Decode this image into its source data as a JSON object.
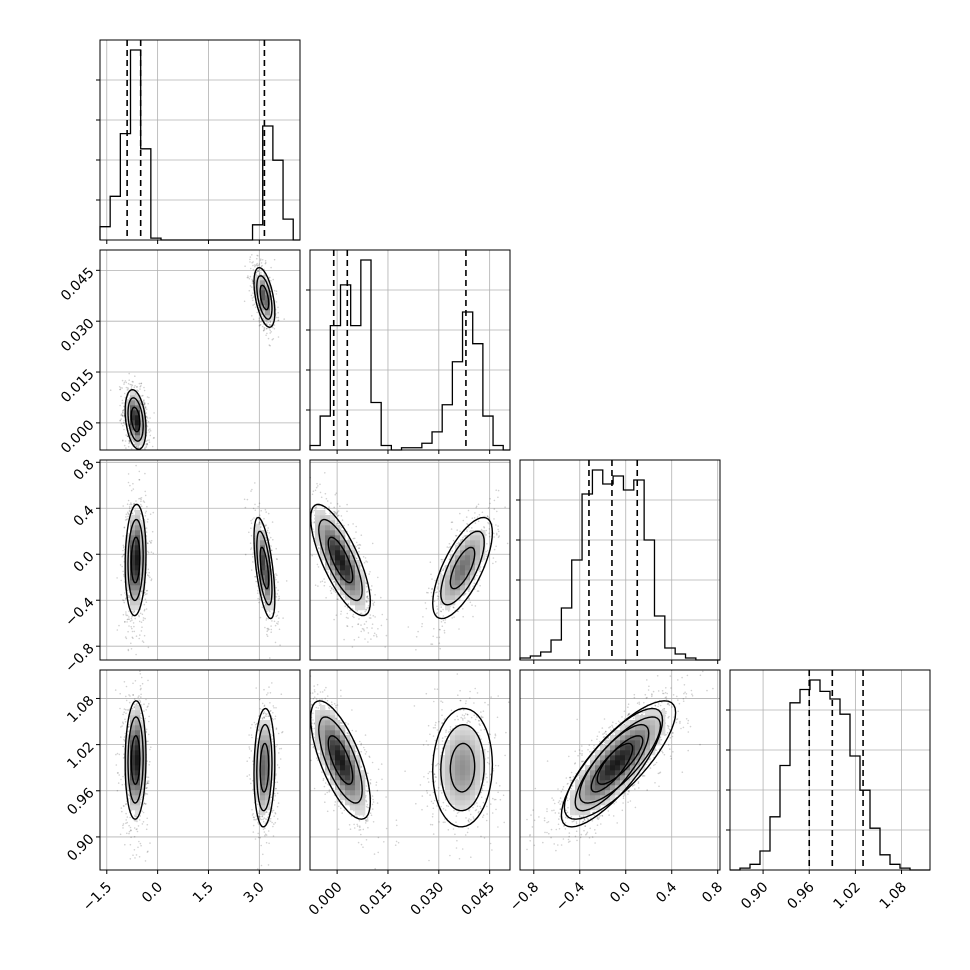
{
  "chart_data": {
    "type": "corner",
    "grid": true,
    "colors": {
      "line": "#000000",
      "grid": "#b0b0b0",
      "points": "#000000",
      "fill_dark": "#1a1a1a"
    },
    "parameters": [
      {
        "id": "p0",
        "range": [
          -1.7,
          4.2
        ],
        "ticks": [
          -1.5,
          0.0,
          1.5,
          3.0
        ],
        "tick_labels": [
          "−1.5",
          "0.0",
          "1.5",
          "3.0"
        ],
        "quantiles": [
          -0.9,
          -0.5,
          3.15
        ],
        "histogram": {
          "bin_edges": [
            -1.7,
            -1.4,
            -1.1,
            -0.8,
            -0.5,
            -0.2,
            0.1,
            0.4,
            0.7,
            1.0,
            1.3,
            1.6,
            1.9,
            2.2,
            2.5,
            2.8,
            3.1,
            3.4,
            3.7,
            4.0,
            4.2
          ],
          "counts": [
            0.07,
            0.23,
            0.56,
            1.0,
            0.48,
            0.01,
            0,
            0,
            0,
            0,
            0,
            0,
            0,
            0,
            0,
            0.08,
            0.6,
            0.42,
            0.11,
            0.0
          ]
        }
      },
      {
        "id": "p1",
        "range": [
          -0.008,
          0.051
        ],
        "ticks": [
          0.0,
          0.015,
          0.03,
          0.045
        ],
        "tick_labels": [
          "0.000",
          "0.015",
          "0.030",
          "0.045"
        ],
        "quantiles": [
          -0.001,
          0.003,
          0.038
        ],
        "histogram": {
          "bin_edges": [
            -0.008,
            -0.005,
            -0.002,
            0.001,
            0.004,
            0.007,
            0.01,
            0.013,
            0.016,
            0.019,
            0.022,
            0.025,
            0.028,
            0.031,
            0.034,
            0.037,
            0.04,
            0.043,
            0.046,
            0.049,
            0.051
          ],
          "counts": [
            0.02,
            0.15,
            0.55,
            0.73,
            0.55,
            0.84,
            0.21,
            0.02,
            0,
            0.01,
            0.01,
            0.03,
            0.08,
            0.2,
            0.39,
            0.61,
            0.47,
            0.15,
            0.02,
            0.0
          ]
        }
      },
      {
        "id": "p2",
        "range": [
          -0.92,
          0.82
        ],
        "ticks": [
          -0.8,
          -0.4,
          0.0,
          0.4,
          0.8
        ],
        "tick_labels": [
          "−0.8",
          "−0.4",
          "0.0",
          "0.4",
          "0.8"
        ],
        "quantiles": [
          -0.32,
          -0.12,
          0.1
        ],
        "histogram": {
          "bin_edges": [
            -0.92,
            -0.83,
            -0.74,
            -0.65,
            -0.56,
            -0.47,
            -0.38,
            -0.29,
            -0.2,
            -0.11,
            -0.02,
            0.07,
            0.16,
            0.25,
            0.34,
            0.43,
            0.52,
            0.61,
            0.7,
            0.82
          ],
          "counts": [
            0.01,
            0.02,
            0.04,
            0.1,
            0.26,
            0.5,
            0.83,
            0.95,
            0.88,
            0.92,
            0.85,
            0.9,
            0.6,
            0.22,
            0.06,
            0.03,
            0.01,
            0.0,
            0.0
          ]
        }
      },
      {
        "id": "p3",
        "range": [
          0.857,
          1.117
        ],
        "ticks": [
          0.9,
          0.96,
          1.02,
          1.08
        ],
        "tick_labels": [
          "0.90",
          "0.96",
          "1.02",
          "1.08"
        ],
        "quantiles": [
          0.96,
          0.99,
          1.03
        ],
        "histogram": {
          "bin_edges": [
            0.857,
            0.87,
            0.883,
            0.896,
            0.909,
            0.922,
            0.935,
            0.948,
            0.961,
            0.974,
            0.987,
            1.0,
            1.013,
            1.026,
            1.039,
            1.052,
            1.065,
            1.078,
            1.091,
            1.104,
            1.117
          ],
          "counts": [
            0.0,
            0.01,
            0.03,
            0.1,
            0.28,
            0.55,
            0.88,
            0.95,
            1.0,
            0.94,
            0.9,
            0.82,
            0.6,
            0.42,
            0.22,
            0.08,
            0.03,
            0.01,
            0.0,
            0.0
          ]
        }
      }
    ],
    "modes": [
      {
        "weight": 0.6,
        "mean": [
          -0.65,
          0.001,
          -0.05,
          1.0
        ],
        "sd": [
          0.14,
          0.004,
          0.22,
          0.035
        ],
        "corr": {
          "0-1": -0.3,
          "0-2": 0.1,
          "0-3": 0.05,
          "1-2": -0.75,
          "1-3": -0.7,
          "2-3": 0.8
        }
      },
      {
        "weight": 0.4,
        "mean": [
          3.15,
          0.037,
          -0.12,
          0.99
        ],
        "sd": [
          0.14,
          0.004,
          0.2,
          0.035
        ],
        "corr": {
          "0-1": -0.5,
          "0-2": -0.6,
          "0-3": 0.1,
          "1-2": 0.7,
          "1-3": 0.05,
          "2-3": 0.8
        }
      }
    ]
  }
}
